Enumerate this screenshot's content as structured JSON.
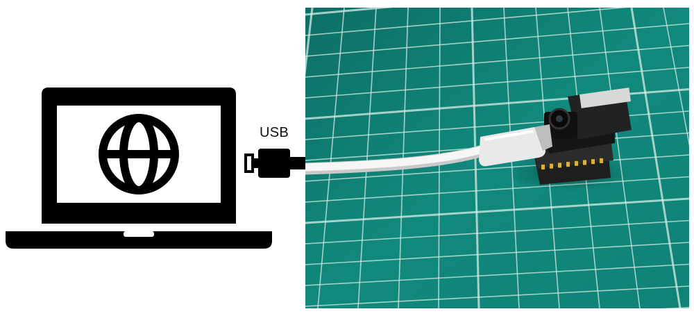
{
  "diagram": {
    "connection_label": "USB"
  },
  "icons": {
    "computer": "laptop-icon",
    "network": "globe-icon",
    "connector": "usb-plug-icon"
  },
  "colors": {
    "icon_fill": "#000000",
    "cutting_mat": "#0f7f74",
    "cable": "#eeeeee",
    "board": "#1a1a1a"
  }
}
